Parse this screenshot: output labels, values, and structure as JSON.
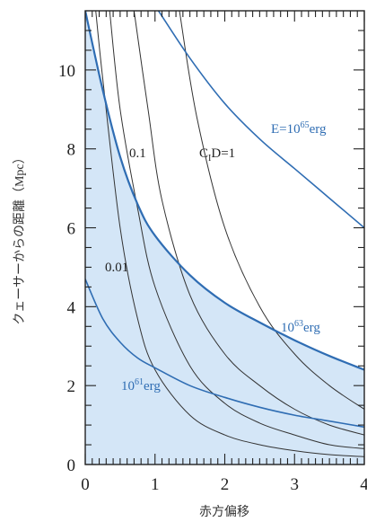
{
  "chart_data": {
    "type": "line",
    "xlabel": "赤方偏移",
    "ylabel": "クェーサーからの距離（Mpc）",
    "xlim": [
      0,
      4
    ],
    "ylim": [
      0,
      11.5
    ],
    "x_ticks": [
      "0",
      "1",
      "2",
      "3",
      "4"
    ],
    "y_ticks": [
      "0",
      "2",
      "4",
      "6",
      "8",
      "10"
    ],
    "shaded_region": "below the 10^63 erg curve",
    "colors": {
      "energy_curve": "#2f6db3",
      "cid_curve": "#333333",
      "fill": "#d4e6f7"
    },
    "energy_series": [
      {
        "label_base": "E=10",
        "label_exp": "65",
        "label_unit": "erg",
        "points": [
          [
            1.05,
            11.5
          ],
          [
            1.5,
            10.3
          ],
          [
            2,
            9.15
          ],
          [
            2.5,
            8.25
          ],
          [
            3,
            7.5
          ],
          [
            3.5,
            6.75
          ],
          [
            4,
            6.0
          ]
        ]
      },
      {
        "label_base": "10",
        "label_exp": "63",
        "label_unit": "erg",
        "points": [
          [
            0,
            11.5
          ],
          [
            0.25,
            9.5
          ],
          [
            0.5,
            7.8
          ],
          [
            0.75,
            6.6
          ],
          [
            1,
            5.8
          ],
          [
            1.5,
            4.8
          ],
          [
            2,
            4.1
          ],
          [
            2.5,
            3.6
          ],
          [
            3,
            3.15
          ],
          [
            3.5,
            2.75
          ],
          [
            4,
            2.4
          ]
        ]
      },
      {
        "label_base": "10",
        "label_exp": "61",
        "label_unit": "erg",
        "points": [
          [
            0,
            4.7
          ],
          [
            0.25,
            3.7
          ],
          [
            0.5,
            3.1
          ],
          [
            0.75,
            2.7
          ],
          [
            1,
            2.45
          ],
          [
            1.5,
            2.0
          ],
          [
            2,
            1.7
          ],
          [
            2.5,
            1.45
          ],
          [
            3,
            1.25
          ],
          [
            3.5,
            1.1
          ],
          [
            4,
            0.95
          ]
        ]
      }
    ],
    "cid_series": [
      {
        "label": "C",
        "label_sub": "I",
        "label_rest": "D=1",
        "points": [
          [
            1.35,
            11.5
          ],
          [
            1.6,
            8.8
          ],
          [
            2,
            6.0
          ],
          [
            2.5,
            4.0
          ],
          [
            3,
            2.8
          ],
          [
            3.5,
            2.0
          ],
          [
            4,
            1.4
          ]
        ]
      },
      {
        "label": "0.1",
        "points": [
          [
            0.7,
            11.5
          ],
          [
            0.9,
            9.0
          ],
          [
            1.1,
            6.7
          ],
          [
            1.5,
            4.3
          ],
          [
            2,
            2.8
          ],
          [
            2.5,
            2.0
          ],
          [
            3,
            1.4
          ],
          [
            3.5,
            1.0
          ],
          [
            4,
            0.75
          ]
        ]
      },
      {
        "label": "0.01",
        "points": [
          [
            0.35,
            11.5
          ],
          [
            0.5,
            9.0
          ],
          [
            0.75,
            6.5
          ],
          [
            1,
            4.5
          ],
          [
            1.5,
            2.5
          ],
          [
            2,
            1.55
          ],
          [
            2.5,
            1.05
          ],
          [
            3,
            0.75
          ],
          [
            3.5,
            0.5
          ],
          [
            4,
            0.4
          ]
        ]
      },
      {
        "label": "",
        "points": [
          [
            0.15,
            11.5
          ],
          [
            0.25,
            9.8
          ],
          [
            0.5,
            6.0
          ],
          [
            0.75,
            3.7
          ],
          [
            1,
            2.4
          ],
          [
            1.5,
            1.25
          ],
          [
            2,
            0.75
          ],
          [
            2.5,
            0.5
          ],
          [
            3,
            0.35
          ],
          [
            3.5,
            0.25
          ],
          [
            4,
            0.2
          ]
        ]
      }
    ]
  }
}
